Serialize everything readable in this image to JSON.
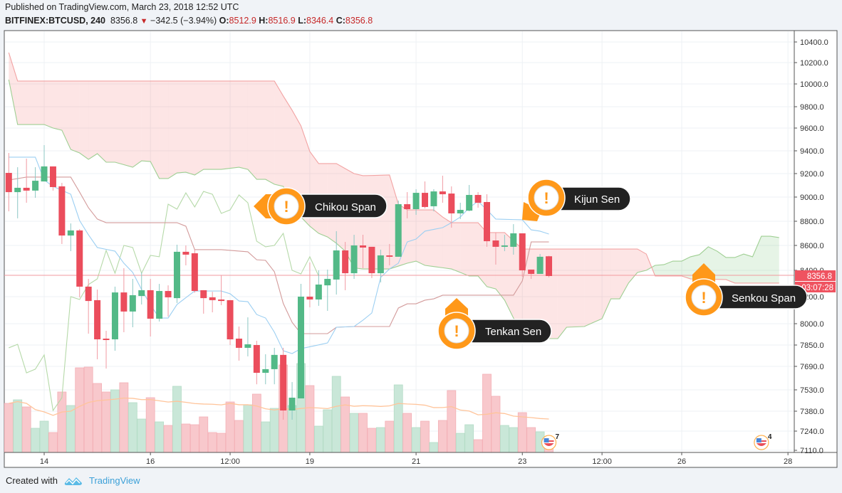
{
  "header": {
    "published": "Published on TradingView.com, March 23, 2018 12:52 UTC",
    "symbol": "BITFINEX:BTCUSD, 240",
    "last": "8356.8",
    "change": "−342.5 (−3.94%)",
    "o_label": "O:",
    "o": "8512.9",
    "h_label": "H:",
    "h": "8516.9",
    "l_label": "L:",
    "l": "8346.4",
    "c_label": "C:",
    "c": "8356.8",
    "down_icon": "triangle-down"
  },
  "footer": {
    "created_with": "Created with",
    "brand": "TradingView",
    "logo_icon": "tradingview-cloud-logo"
  },
  "colors": {
    "up": "#53b987",
    "down": "#eb4d5c",
    "tenkan": "#9ccff2",
    "kijun": "#d39b9b",
    "chikou": "#b5d9a8",
    "senkou_a": "#9fcf93",
    "senkou_b": "#f2a3a3",
    "callout": "#ff9819",
    "callout_label_bg": "#222222",
    "price_label": "#ef5360"
  },
  "price_label": {
    "value": "8356.8",
    "countdown": "03:07:28"
  },
  "callouts": {
    "chikou": "Chikou Span",
    "kijun": "Kijun Sen",
    "tenkan": "Tenkan Sen",
    "senkou": "Senkou Span",
    "icon": "exclamation"
  },
  "events": [
    {
      "icon": "us-flag-event",
      "count": "7",
      "t": "03-23 12:00"
    },
    {
      "icon": "us-flag-event",
      "count": "4",
      "t": "03-27 12:00"
    }
  ],
  "chart_data": {
    "type": "candlestick",
    "symbol": "BITFINEX:BTCUSD",
    "interval": "240",
    "y_ticks": [
      "10400.0",
      "10200.0",
      "10000.0",
      "9800.0",
      "9600.0",
      "9400.0",
      "9200.0",
      "9000.0",
      "8800.0",
      "8600.0",
      "8400.0",
      "8200.0",
      "8000.0",
      "7850.0",
      "7690.0",
      "7530.0",
      "7380.0",
      "7240.0",
      "7110.0"
    ],
    "x_ticks": [
      {
        "label": "14",
        "t": "03-14 00:00"
      },
      {
        "label": "16",
        "t": "03-16 00:00"
      },
      {
        "label": "12:00",
        "t": "03-17 12:00"
      },
      {
        "label": "19",
        "t": "03-19 00:00"
      },
      {
        "label": "21",
        "t": "03-21 00:00"
      },
      {
        "label": "23",
        "t": "03-23 00:00"
      },
      {
        "label": "12:00",
        "t": "03-24 12:00"
      },
      {
        "label": "26",
        "t": "03-26 00:00"
      },
      {
        "label": "28",
        "t": "03-28 00:00"
      }
    ],
    "grid": true,
    "candles_columns": [
      "time",
      "open",
      "high",
      "low",
      "close",
      "volume_relative"
    ],
    "candles": [
      [
        "03-13 08:00",
        9206,
        9381,
        8882,
        9042,
        69
      ],
      [
        "03-13 12:00",
        9042,
        9256,
        8824,
        9079,
        74
      ],
      [
        "03-13 16:00",
        9079,
        9331,
        8953,
        9055,
        64
      ],
      [
        "03-13 20:00",
        9055,
        9256,
        8994,
        9139,
        34
      ],
      [
        "03-14 00:00",
        9133,
        9450,
        9133,
        9263,
        44
      ],
      [
        "03-14 04:00",
        9263,
        9263,
        9055,
        9085,
        28
      ],
      [
        "03-14 08:00",
        9091,
        9121,
        8612,
        8682,
        85
      ],
      [
        "03-14 12:00",
        8682,
        8782,
        8554,
        8724,
        66
      ],
      [
        "03-14 16:00",
        8724,
        8735,
        8195,
        8276,
        119
      ],
      [
        "03-14 20:00",
        8276,
        8335,
        7930,
        8168,
        120
      ],
      [
        "03-15 00:00",
        8174,
        8254,
        7743,
        7890,
        97
      ],
      [
        "03-15 04:00",
        7895,
        7950,
        7675,
        7885,
        85
      ],
      [
        "03-15 08:00",
        7890,
        8276,
        7807,
        8232,
        88
      ],
      [
        "03-15 12:00",
        8232,
        8417,
        7940,
        8090,
        98
      ],
      [
        "03-15 16:00",
        8090,
        8335,
        7975,
        8211,
        70
      ],
      [
        "03-15 20:00",
        8205,
        8384,
        8142,
        8249,
        47
      ],
      [
        "03-16 00:00",
        8249,
        8335,
        7910,
        8037,
        77
      ],
      [
        "03-16 04:00",
        8037,
        8297,
        8016,
        8243,
        43
      ],
      [
        "03-16 08:00",
        8243,
        8286,
        8053,
        8195,
        38
      ],
      [
        "03-16 12:00",
        8189,
        8606,
        8153,
        8549,
        93
      ],
      [
        "03-16 16:00",
        8549,
        8600,
        8440,
        8526,
        40
      ],
      [
        "03-16 20:00",
        8537,
        8566,
        8230,
        8243,
        39
      ],
      [
        "03-17 00:00",
        8249,
        8249,
        8074,
        8189,
        50
      ],
      [
        "03-17 04:00",
        8195,
        8237,
        8084,
        8174,
        28
      ],
      [
        "03-17 08:00",
        8179,
        8362,
        8137,
        8168,
        27
      ],
      [
        "03-17 12:00",
        8174,
        8174,
        7850,
        7890,
        71
      ],
      [
        "03-17 16:00",
        7895,
        7980,
        7733,
        7829,
        45
      ],
      [
        "03-17 20:00",
        7829,
        8047,
        7765,
        7855,
        67
      ],
      [
        "03-18 00:00",
        7850,
        7880,
        7568,
        7646,
        82
      ],
      [
        "03-18 04:00",
        7646,
        7781,
        7568,
        7671,
        43
      ],
      [
        "03-18 08:00",
        7671,
        7829,
        7568,
        7776,
        62
      ],
      [
        "03-18 12:00",
        7776,
        7829,
        7320,
        7385,
        123
      ],
      [
        "03-18 16:00",
        7385,
        7583,
        7320,
        7475,
        66
      ],
      [
        "03-18 20:00",
        7470,
        8297,
        7470,
        8200,
        125
      ],
      [
        "03-19 00:00",
        8200,
        8463,
        8121,
        8179,
        94
      ],
      [
        "03-19 04:00",
        8179,
        8400,
        8132,
        8292,
        37
      ],
      [
        "03-19 08:00",
        8286,
        8406,
        8095,
        8335,
        60
      ],
      [
        "03-19 12:00",
        8330,
        8718,
        8216,
        8560,
        107
      ],
      [
        "03-19 16:00",
        8560,
        8629,
        8249,
        8378,
        78
      ],
      [
        "03-19 20:00",
        8378,
        8688,
        8335,
        8600,
        55
      ],
      [
        "03-20 00:00",
        8600,
        8688,
        8417,
        8583,
        55
      ],
      [
        "03-20 04:00",
        8589,
        8589,
        8341,
        8378,
        34
      ],
      [
        "03-20 08:00",
        8378,
        8566,
        8308,
        8520,
        35
      ],
      [
        "03-20 12:00",
        8520,
        8612,
        8440,
        8509,
        44
      ],
      [
        "03-20 16:00",
        8509,
        8971,
        8509,
        8941,
        95
      ],
      [
        "03-20 20:00",
        8941,
        9042,
        8824,
        8900,
        55
      ],
      [
        "03-21 00:00",
        8900,
        9067,
        8853,
        9036,
        35
      ],
      [
        "03-21 04:00",
        9036,
        9133,
        8906,
        8918,
        44
      ],
      [
        "03-21 08:00",
        8924,
        9067,
        8882,
        9048,
        14
      ],
      [
        "03-21 12:00",
        9048,
        9182,
        8953,
        9024,
        45
      ],
      [
        "03-21 16:00",
        9030,
        9091,
        8747,
        8865,
        87
      ],
      [
        "03-21 20:00",
        8865,
        8953,
        8818,
        8894,
        27
      ],
      [
        "03-22 00:00",
        8888,
        9103,
        8882,
        9018,
        39
      ],
      [
        "03-22 04:00",
        9018,
        9042,
        8912,
        8953,
        18
      ],
      [
        "03-22 08:00",
        8959,
        9024,
        8589,
        8635,
        110
      ],
      [
        "03-22 12:00",
        8641,
        8706,
        8446,
        8589,
        79
      ],
      [
        "03-22 16:00",
        8589,
        8688,
        8554,
        8600,
        38
      ],
      [
        "03-22 20:00",
        8589,
        8776,
        8526,
        8700,
        35
      ],
      [
        "03-23 00:00",
        8700,
        8700,
        8351,
        8400,
        56
      ],
      [
        "03-23 04:00",
        8406,
        8406,
        8335,
        8373,
        35
      ],
      [
        "03-23 08:00",
        8373,
        8531,
        8373,
        8509,
        29
      ],
      [
        "03-23 12:00",
        8512.9,
        8516.9,
        8346.4,
        8356.8,
        20
      ]
    ],
    "tenkan_sen": [
      [
        "03-13 08:00",
        9344
      ],
      [
        "03-13 20:00",
        9344
      ],
      [
        "03-14 00:00",
        9145
      ],
      [
        "03-14 04:00",
        9091
      ],
      [
        "03-14 12:00",
        9024
      ],
      [
        "03-14 16:00",
        8806
      ],
      [
        "03-14 20:00",
        8688
      ],
      [
        "03-15 00:00",
        8583
      ],
      [
        "03-15 08:00",
        8554
      ],
      [
        "03-15 12:00",
        8457
      ],
      [
        "03-15 16:00",
        8384
      ],
      [
        "03-15 20:00",
        8254
      ],
      [
        "03-16 00:00",
        8140
      ],
      [
        "03-16 04:00",
        8042
      ],
      [
        "03-16 08:00",
        8042
      ],
      [
        "03-16 12:00",
        8142
      ],
      [
        "03-16 20:00",
        8243
      ],
      [
        "03-17 08:00",
        8243
      ],
      [
        "03-17 12:00",
        8222
      ],
      [
        "03-17 16:00",
        8168
      ],
      [
        "03-17 20:00",
        8163
      ],
      [
        "03-18 00:00",
        8068
      ],
      [
        "03-18 04:00",
        8042
      ],
      [
        "03-18 08:00",
        7940
      ],
      [
        "03-18 12:00",
        7807
      ],
      [
        "03-18 16:00",
        7786
      ],
      [
        "03-18 20:00",
        7823
      ],
      [
        "03-19 08:00",
        7865
      ],
      [
        "03-19 12:00",
        7975
      ],
      [
        "03-19 20:00",
        7980
      ],
      [
        "03-20 00:00",
        8026
      ],
      [
        "03-20 04:00",
        8079
      ],
      [
        "03-20 08:00",
        8346
      ],
      [
        "03-20 12:00",
        8411
      ],
      [
        "03-20 16:00",
        8457
      ],
      [
        "03-20 20:00",
        8629
      ],
      [
        "03-21 00:00",
        8653
      ],
      [
        "03-21 04:00",
        8718
      ],
      [
        "03-21 12:00",
        8747
      ],
      [
        "03-21 16:00",
        8788
      ],
      [
        "03-21 20:00",
        8835
      ],
      [
        "03-22 00:00",
        8912
      ],
      [
        "03-22 04:00",
        8965
      ],
      [
        "03-22 08:00",
        8894
      ],
      [
        "03-22 12:00",
        8818
      ],
      [
        "03-23 00:00",
        8812
      ],
      [
        "03-23 04:00",
        8729
      ],
      [
        "03-23 08:00",
        8718
      ],
      [
        "03-23 12:00",
        8694
      ]
    ],
    "kijun_sen": [
      [
        "03-13 08:00",
        9145
      ],
      [
        "03-13 16:00",
        9170
      ],
      [
        "03-14 12:00",
        9170
      ],
      [
        "03-14 16:00",
        9042
      ],
      [
        "03-14 20:00",
        8912
      ],
      [
        "03-15 00:00",
        8818
      ],
      [
        "03-15 04:00",
        8788
      ],
      [
        "03-16 12:00",
        8788
      ],
      [
        "03-16 16:00",
        8759
      ],
      [
        "03-16 20:00",
        8566
      ],
      [
        "03-17 08:00",
        8566
      ],
      [
        "03-17 20:00",
        8549
      ],
      [
        "03-18 00:00",
        8485
      ],
      [
        "03-18 04:00",
        8480
      ],
      [
        "03-18 08:00",
        8389
      ],
      [
        "03-18 12:00",
        8150
      ],
      [
        "03-18 16:00",
        8010
      ],
      [
        "03-18 20:00",
        7930
      ],
      [
        "03-19 08:00",
        7930
      ],
      [
        "03-19 12:00",
        7975
      ],
      [
        "03-19 20:00",
        7980
      ],
      [
        "03-20 12:00",
        7980
      ],
      [
        "03-20 16:00",
        8116
      ],
      [
        "03-20 20:00",
        8147
      ],
      [
        "03-21 00:00",
        8147
      ],
      [
        "03-21 04:00",
        8174
      ],
      [
        "03-21 08:00",
        8184
      ],
      [
        "03-21 12:00",
        8211
      ],
      [
        "03-22 20:00",
        8211
      ],
      [
        "03-23 00:00",
        8320
      ],
      [
        "03-23 04:00",
        8629
      ],
      [
        "03-23 12:00",
        8629
      ]
    ],
    "senkou_span_a": [
      [
        "03-13 08:00",
        10040
      ],
      [
        "03-13 12:00",
        9633
      ],
      [
        "03-14 00:00",
        9633
      ],
      [
        "03-14 04:00",
        9600
      ],
      [
        "03-14 08:00",
        9581
      ],
      [
        "03-14 12:00",
        9412
      ],
      [
        "03-14 16:00",
        9381
      ],
      [
        "03-14 20:00",
        9325
      ],
      [
        "03-15 00:00",
        9375
      ],
      [
        "03-15 04:00",
        9300
      ],
      [
        "03-15 08:00",
        9300
      ],
      [
        "03-15 16:00",
        9256
      ],
      [
        "03-15 20:00",
        9312
      ],
      [
        "03-16 00:00",
        9306
      ],
      [
        "03-16 04:00",
        9158
      ],
      [
        "03-16 08:00",
        9158
      ],
      [
        "03-16 12:00",
        9206
      ],
      [
        "03-16 16:00",
        9212
      ],
      [
        "03-16 20:00",
        9188
      ],
      [
        "03-17 00:00",
        9237
      ],
      [
        "03-17 08:00",
        9237
      ],
      [
        "03-17 16:00",
        9256
      ],
      [
        "03-17 20:00",
        9237
      ],
      [
        "03-18 00:00",
        9151
      ],
      [
        "03-18 04:00",
        9151
      ],
      [
        "03-18 08:00",
        9109
      ],
      [
        "03-18 12:00",
        9091
      ],
      [
        "03-18 20:00",
        8835
      ],
      [
        "03-19 00:00",
        8759
      ],
      [
        "03-19 04:00",
        8700
      ],
      [
        "03-19 08:00",
        8670
      ],
      [
        "03-19 12:00",
        8618
      ],
      [
        "03-19 16:00",
        8554
      ],
      [
        "03-19 20:00",
        8420
      ],
      [
        "03-20 00:00",
        8411
      ],
      [
        "03-20 12:00",
        8411
      ],
      [
        "03-20 20:00",
        8457
      ],
      [
        "03-21 00:00",
        8474
      ],
      [
        "03-21 04:00",
        8440
      ],
      [
        "03-21 16:00",
        8411
      ],
      [
        "03-22 00:00",
        8357
      ],
      [
        "03-22 04:00",
        8357
      ],
      [
        "03-22 08:00",
        8276
      ],
      [
        "03-22 12:00",
        8259
      ],
      [
        "03-22 16:00",
        8174
      ],
      [
        "03-22 20:00",
        8042
      ],
      [
        "03-23 00:00",
        7940
      ],
      [
        "03-23 04:00",
        7895
      ],
      [
        "03-23 16:00",
        7895
      ],
      [
        "03-23 20:00",
        7975
      ],
      [
        "03-24 04:00",
        7980
      ],
      [
        "03-24 12:00",
        8037
      ],
      [
        "03-24 16:00",
        8184
      ],
      [
        "03-24 20:00",
        8184
      ],
      [
        "03-25 00:00",
        8304
      ],
      [
        "03-25 04:00",
        8384
      ],
      [
        "03-25 08:00",
        8400
      ],
      [
        "03-25 12:00",
        8440
      ],
      [
        "03-25 16:00",
        8446
      ],
      [
        "03-25 20:00",
        8474
      ],
      [
        "03-26 00:00",
        8474
      ],
      [
        "03-26 04:00",
        8509
      ],
      [
        "03-26 08:00",
        8526
      ],
      [
        "03-26 12:00",
        8589
      ],
      [
        "03-26 16:00",
        8554
      ],
      [
        "03-26 20:00",
        8503
      ],
      [
        "03-27 00:00",
        8503
      ],
      [
        "03-27 04:00",
        8531
      ],
      [
        "03-27 08:00",
        8509
      ],
      [
        "03-27 12:00",
        8676
      ],
      [
        "03-27 16:00",
        8676
      ],
      [
        "03-27 20:00",
        8665
      ]
    ],
    "senkou_span_b": [
      [
        "03-13 08:00",
        10297
      ],
      [
        "03-13 12:00",
        10027
      ],
      [
        "03-18 08:00",
        10027
      ],
      [
        "03-18 12:00",
        9894
      ],
      [
        "03-18 16:00",
        9767
      ],
      [
        "03-18 20:00",
        9620
      ],
      [
        "03-19 00:00",
        9394
      ],
      [
        "03-19 04:00",
        9288
      ],
      [
        "03-19 12:00",
        9288
      ],
      [
        "03-19 20:00",
        9200
      ],
      [
        "03-20 00:00",
        9182
      ],
      [
        "03-20 12:00",
        9188
      ],
      [
        "03-20 16:00",
        8941
      ],
      [
        "03-20 20:00",
        8894
      ],
      [
        "03-21 08:00",
        8894
      ],
      [
        "03-21 12:00",
        8835
      ],
      [
        "03-21 16:00",
        8788
      ],
      [
        "03-22 04:00",
        8788
      ],
      [
        "03-22 08:00",
        8706
      ],
      [
        "03-22 16:00",
        8706
      ],
      [
        "03-23 00:00",
        8571
      ],
      [
        "03-25 04:00",
        8571
      ],
      [
        "03-25 08:00",
        8531
      ],
      [
        "03-25 12:00",
        8357
      ],
      [
        "03-26 00:00",
        8357
      ],
      [
        "03-26 04:00",
        8335
      ],
      [
        "03-26 20:00",
        8330
      ],
      [
        "03-27 00:00",
        8303
      ],
      [
        "03-27 20:00",
        8303
      ]
    ],
    "chikou_span": "close shifted back 26 periods",
    "volume_ma_period": 20
  }
}
